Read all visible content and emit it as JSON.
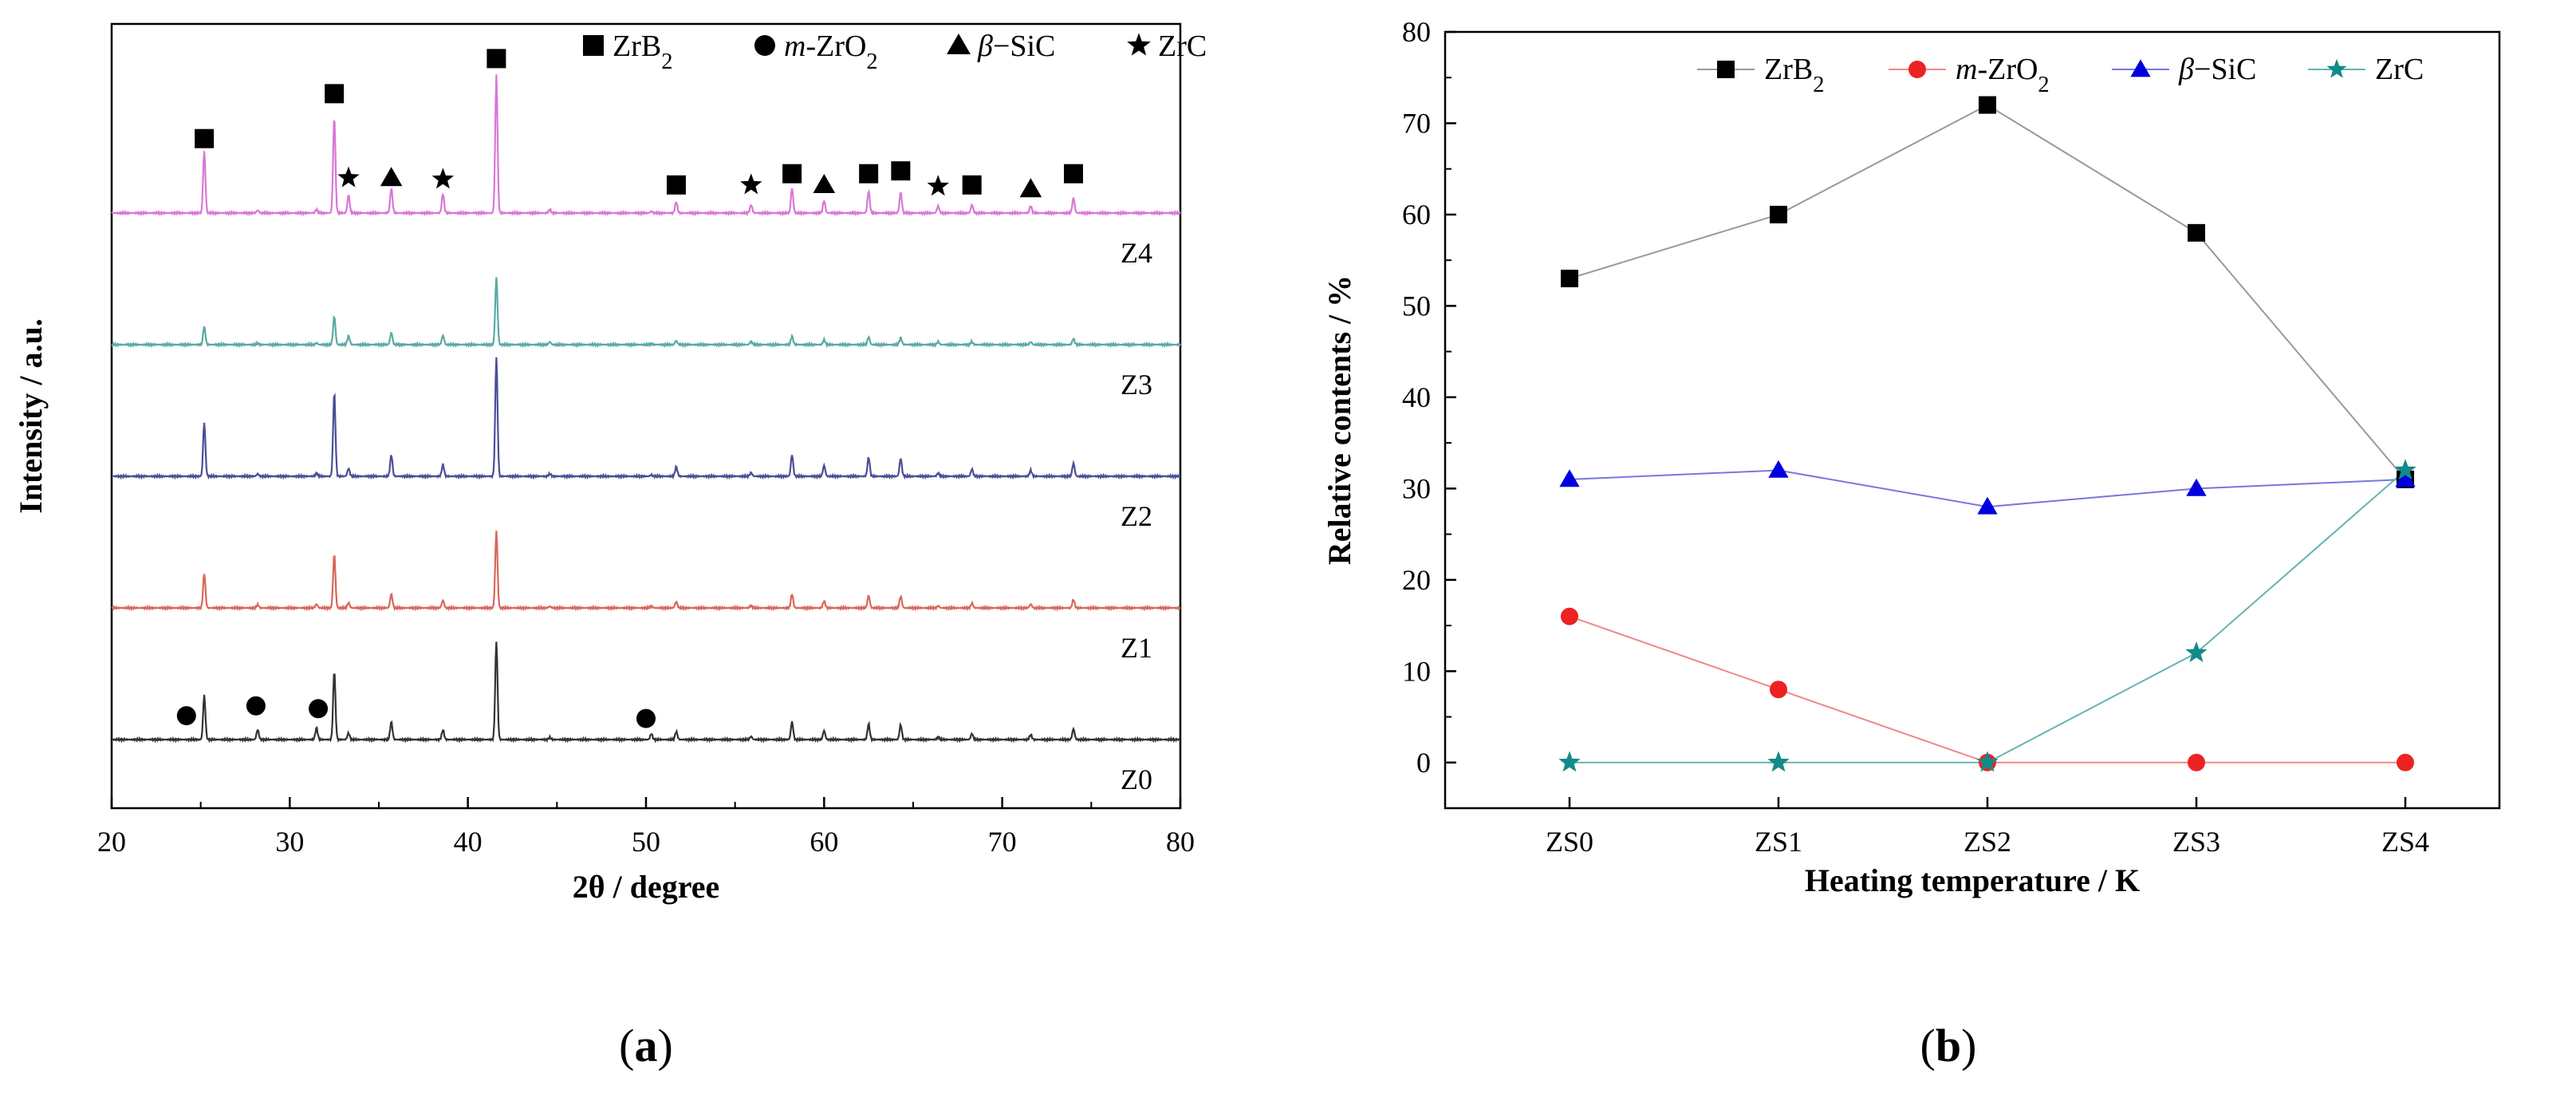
{
  "chart_data": [
    {
      "type": "line",
      "panel_label": "(a)",
      "panel_letter": "a",
      "xlabel": "2θ / degree",
      "ylabel": "Intensity / a.u.",
      "xlim": [
        20,
        80
      ],
      "x_ticks": [
        20,
        30,
        40,
        50,
        60,
        70,
        80
      ],
      "y_ticks": [],
      "legend": {
        "placement": "top-right",
        "entries": [
          {
            "marker": "square",
            "parts": [
              [
                "ZrB",
                "normal"
              ],
              [
                "2",
                "sub"
              ]
            ]
          },
          {
            "marker": "circle",
            "parts": [
              [
                "m",
                "italic"
              ],
              [
                "-ZrO",
                "normal"
              ],
              [
                "2",
                "sub"
              ]
            ]
          },
          {
            "marker": "triangle",
            "parts": [
              [
                "β",
                "italic"
              ],
              [
                "−SiC",
                "normal"
              ]
            ]
          },
          {
            "marker": "star",
            "parts": [
              [
                "ZrC",
                "normal"
              ]
            ]
          }
        ]
      },
      "peaks": [
        {
          "two_theta": 25.2,
          "rel_intensity": 0.45
        },
        {
          "two_theta": 28.2,
          "rel_intensity": 0.1
        },
        {
          "two_theta": 31.5,
          "rel_intensity": 0.12
        },
        {
          "two_theta": 32.5,
          "rel_intensity": 0.7
        },
        {
          "two_theta": 33.3,
          "rel_intensity": 0.13
        },
        {
          "two_theta": 35.7,
          "rel_intensity": 0.18
        },
        {
          "two_theta": 38.6,
          "rel_intensity": 0.14
        },
        {
          "two_theta": 41.6,
          "rel_intensity": 1.0
        },
        {
          "two_theta": 44.6,
          "rel_intensity": 0.05
        },
        {
          "two_theta": 50.3,
          "rel_intensity": 0.06
        },
        {
          "two_theta": 51.7,
          "rel_intensity": 0.08
        },
        {
          "two_theta": 55.9,
          "rel_intensity": 0.06
        },
        {
          "two_theta": 58.2,
          "rel_intensity": 0.18
        },
        {
          "two_theta": 60.0,
          "rel_intensity": 0.09
        },
        {
          "two_theta": 62.5,
          "rel_intensity": 0.16
        },
        {
          "two_theta": 64.3,
          "rel_intensity": 0.15
        },
        {
          "two_theta": 66.4,
          "rel_intensity": 0.05
        },
        {
          "two_theta": 68.3,
          "rel_intensity": 0.06
        },
        {
          "two_theta": 71.6,
          "rel_intensity": 0.05
        },
        {
          "two_theta": 74.0,
          "rel_intensity": 0.11
        }
      ],
      "series": [
        {
          "name": "Z0",
          "color": "#333333",
          "baseline_offset": 0.0,
          "scale": 0.7,
          "peak_scale": [
            1.0,
            1.0,
            1.0,
            1.0,
            0.5,
            1.0,
            0.7,
            1.0,
            0.4,
            1.0,
            1.0,
            0.5,
            1.0,
            1.0,
            1.0,
            1.0,
            0.5,
            1.0,
            1.0,
            1.0
          ]
        },
        {
          "name": "Z1",
          "color": "#d9675a",
          "baseline_offset": 1.0,
          "scale": 0.55,
          "peak_scale": [
            1.0,
            0.4,
            0.4,
            1.0,
            0.5,
            1.0,
            0.7,
            1.0,
            0.4,
            0.4,
            1.0,
            0.5,
            1.0,
            1.0,
            1.0,
            1.0,
            0.5,
            1.0,
            1.0,
            1.0
          ]
        },
        {
          "name": "Z2",
          "color": "#4a4f96",
          "baseline_offset": 2.0,
          "scale": 0.85,
          "peak_scale": [
            1.0,
            0.2,
            0.2,
            1.0,
            0.5,
            1.0,
            0.7,
            1.0,
            0.4,
            0.2,
            1.0,
            0.5,
            1.0,
            1.0,
            1.0,
            1.0,
            0.5,
            1.0,
            1.0,
            1.0
          ]
        },
        {
          "name": "Z3",
          "color": "#5aaaa4",
          "baseline_offset": 3.0,
          "scale": 0.48,
          "peak_scale": [
            0.6,
            0.2,
            0.2,
            0.6,
            1.0,
            1.0,
            1.0,
            1.0,
            0.8,
            0.2,
            0.7,
            0.8,
            0.7,
            0.8,
            0.7,
            0.7,
            0.8,
            0.7,
            0.8,
            0.8
          ]
        },
        {
          "name": "Z4",
          "color": "#d977d6",
          "baseline_offset": 4.0,
          "scale": 0.98,
          "peak_scale": [
            1.0,
            0.2,
            0.2,
            1.0,
            1.0,
            1.0,
            1.0,
            1.0,
            0.5,
            0.2,
            1.0,
            1.0,
            1.0,
            1.0,
            1.0,
            1.0,
            1.0,
            1.0,
            1.0,
            1.0
          ]
        }
      ],
      "phase_markers": [
        {
          "series": "Z4",
          "phase": "ZrB2",
          "marker": "square",
          "two_theta": 25.2,
          "intensity": 0.53
        },
        {
          "series": "Z4",
          "phase": "ZrB2",
          "marker": "square",
          "two_theta": 32.5,
          "intensity": 0.85
        },
        {
          "series": "Z4",
          "phase": "ZrC",
          "marker": "star",
          "two_theta": 33.3,
          "intensity": 0.25
        },
        {
          "series": "Z4",
          "phase": "β-SiC",
          "marker": "triangle",
          "two_theta": 35.7,
          "intensity": 0.25
        },
        {
          "series": "Z4",
          "phase": "ZrC",
          "marker": "star",
          "two_theta": 38.6,
          "intensity": 0.24
        },
        {
          "series": "Z4",
          "phase": "ZrB2",
          "marker": "square",
          "two_theta": 41.6,
          "intensity": 1.1
        },
        {
          "series": "Z4",
          "phase": "ZrB2",
          "marker": "square",
          "two_theta": 51.7,
          "intensity": 0.2
        },
        {
          "series": "Z4",
          "phase": "ZrC",
          "marker": "star",
          "two_theta": 55.9,
          "intensity": 0.2
        },
        {
          "series": "Z4",
          "phase": "ZrB2",
          "marker": "square",
          "two_theta": 58.2,
          "intensity": 0.28
        },
        {
          "series": "Z4",
          "phase": "β-SiC",
          "marker": "triangle",
          "two_theta": 60.0,
          "intensity": 0.2
        },
        {
          "series": "Z4",
          "phase": "ZrB2",
          "marker": "square",
          "two_theta": 62.5,
          "intensity": 0.28
        },
        {
          "series": "Z4",
          "phase": "ZrB2",
          "marker": "square",
          "two_theta": 64.3,
          "intensity": 0.3
        },
        {
          "series": "Z4",
          "phase": "ZrC",
          "marker": "star",
          "two_theta": 66.4,
          "intensity": 0.19
        },
        {
          "series": "Z4",
          "phase": "ZrB2",
          "marker": "square",
          "two_theta": 68.3,
          "intensity": 0.2
        },
        {
          "series": "Z4",
          "phase": "β-SiC",
          "marker": "triangle",
          "two_theta": 71.6,
          "intensity": 0.17
        },
        {
          "series": "Z4",
          "phase": "ZrB2",
          "marker": "square",
          "two_theta": 74.0,
          "intensity": 0.28
        },
        {
          "series": "Z0",
          "phase": "m-ZrO2",
          "marker": "circle",
          "two_theta": 24.2,
          "intensity": 0.17
        },
        {
          "series": "Z0",
          "phase": "m-ZrO2",
          "marker": "circle",
          "two_theta": 28.1,
          "intensity": 0.24
        },
        {
          "series": "Z0",
          "phase": "m-ZrO2",
          "marker": "circle",
          "two_theta": 31.6,
          "intensity": 0.22
        },
        {
          "series": "Z0",
          "phase": "m-ZrO2",
          "marker": "circle",
          "two_theta": 50.0,
          "intensity": 0.15
        }
      ]
    },
    {
      "type": "line",
      "panel_label": "(b)",
      "panel_letter": "b",
      "xlabel": "Heating temperature / K",
      "ylabel": "Relative contents / %",
      "categories": [
        "ZS0",
        "ZS1",
        "ZS2",
        "ZS3",
        "ZS4"
      ],
      "ylim": [
        -5,
        80
      ],
      "y_ticks": [
        0,
        10,
        20,
        30,
        40,
        50,
        60,
        70,
        80
      ],
      "legend_placement": "top",
      "series": [
        {
          "name_parts": [
            [
              "ZrB",
              "normal"
            ],
            [
              "2",
              "sub"
            ]
          ],
          "marker": "square",
          "color": "#000000",
          "line_color": "#999999",
          "values": [
            53,
            60,
            72,
            58,
            31
          ]
        },
        {
          "name_parts": [
            [
              "m",
              "italic"
            ],
            [
              "-ZrO",
              "normal"
            ],
            [
              "2",
              "sub"
            ]
          ],
          "marker": "circle",
          "color": "#ee2222",
          "line_color": "#ee8888",
          "values": [
            16,
            8,
            0,
            0,
            0
          ]
        },
        {
          "name_parts": [
            [
              "β",
              "italic"
            ],
            [
              "−SiC",
              "normal"
            ]
          ],
          "marker": "triangle",
          "color": "#0000dd",
          "line_color": "#7777dd",
          "values": [
            31,
            32,
            28,
            30,
            31
          ]
        },
        {
          "name_parts": [
            [
              "ZrC",
              "normal"
            ]
          ],
          "marker": "star",
          "color": "#138a8a",
          "line_color": "#66b3b3",
          "values": [
            0,
            0,
            0,
            12,
            32
          ]
        }
      ]
    }
  ]
}
